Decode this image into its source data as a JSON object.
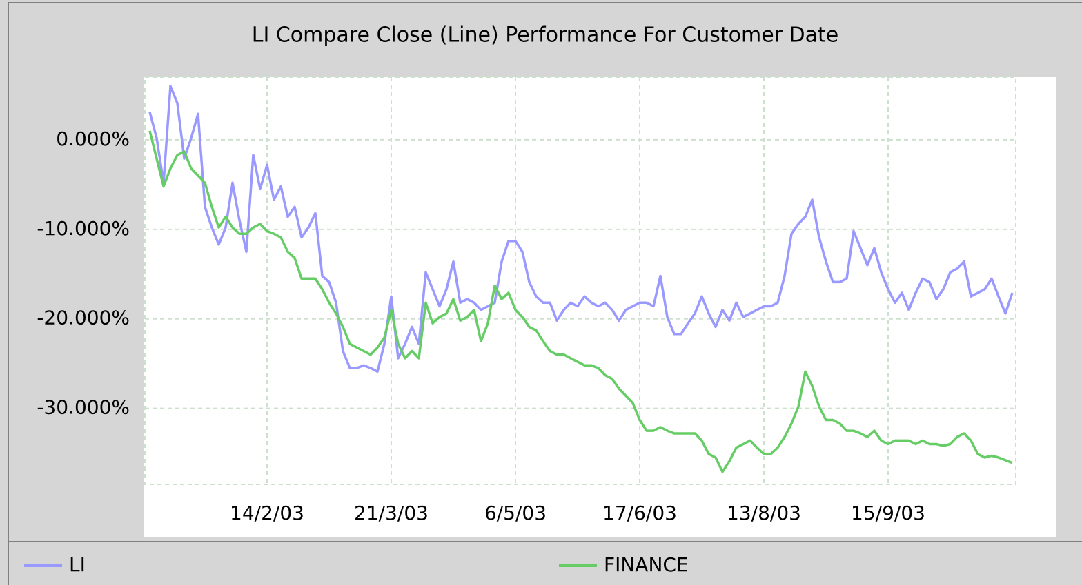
{
  "chart_data": {
    "type": "line",
    "title": "LI Compare Close (Line) Performance For Customer Date",
    "categories": [
      null,
      null,
      null,
      null,
      null,
      null,
      null,
      null,
      null,
      null,
      null,
      null,
      null,
      null,
      null,
      null,
      null,
      "14/2/03",
      null,
      null,
      null,
      null,
      null,
      null,
      null,
      null,
      null,
      null,
      null,
      null,
      null,
      null,
      null,
      null,
      null,
      "21/3/03",
      null,
      null,
      null,
      null,
      null,
      null,
      null,
      null,
      null,
      null,
      null,
      null,
      null,
      null,
      null,
      null,
      null,
      "6/5/03",
      null,
      null,
      null,
      null,
      null,
      null,
      null,
      null,
      null,
      null,
      null,
      null,
      null,
      null,
      null,
      null,
      null,
      "17/6/03",
      null,
      null,
      null,
      null,
      null,
      null,
      null,
      null,
      null,
      null,
      null,
      null,
      null,
      null,
      null,
      null,
      null,
      "13/8/03",
      null,
      null,
      null,
      null,
      null,
      null,
      null,
      null,
      null,
      null,
      null,
      null,
      null,
      null,
      null,
      null,
      null,
      "15/9/03",
      null,
      null,
      null,
      null,
      null,
      null,
      null,
      null,
      null,
      null,
      null,
      null,
      null,
      null,
      null,
      null,
      null,
      null
    ],
    "series": [
      {
        "name": "LI",
        "color": "#9999ff",
        "values": [
          3.1,
          0.2,
          -4.8,
          6.0,
          4.1,
          -2.1,
          0.2,
          2.9,
          -7.5,
          -9.8,
          -11.7,
          -9.8,
          -4.8,
          -9.0,
          -12.5,
          -1.7,
          -5.5,
          -2.8,
          -6.7,
          -5.2,
          -8.6,
          -7.5,
          -10.9,
          -9.8,
          -8.2,
          -15.2,
          -15.9,
          -18.2,
          -23.6,
          -25.5,
          -25.5,
          -25.2,
          -25.5,
          -25.9,
          -22.8,
          -17.5,
          -24.4,
          -22.8,
          -20.9,
          -22.8,
          -14.8,
          -16.7,
          -18.6,
          -16.7,
          -13.6,
          -18.2,
          -17.8,
          -18.2,
          -19.0,
          -18.6,
          -18.2,
          -13.6,
          -11.3,
          -11.3,
          -12.5,
          -15.9,
          -17.5,
          -18.2,
          -18.2,
          -20.2,
          -19.0,
          -18.2,
          -18.6,
          -17.5,
          -18.2,
          -18.6,
          -18.2,
          -19.0,
          -20.2,
          -19.0,
          -18.6,
          -18.2,
          -18.2,
          -18.6,
          -15.2,
          -19.8,
          -21.7,
          -21.7,
          -20.5,
          -19.4,
          -17.5,
          -19.4,
          -20.9,
          -19.0,
          -20.2,
          -18.2,
          -19.8,
          -19.4,
          -19.0,
          -18.6,
          -18.6,
          -18.2,
          -15.2,
          -10.5,
          -9.4,
          -8.6,
          -6.7,
          -10.9,
          -13.6,
          -15.9,
          -15.9,
          -15.5,
          -10.2,
          -12.1,
          -14.0,
          -12.1,
          -14.8,
          -16.7,
          -18.2,
          -17.1,
          -19.0,
          -17.1,
          -15.5,
          -15.9,
          -17.8,
          -16.7,
          -14.8,
          -14.4,
          -13.6,
          -17.5,
          -17.1,
          -16.7,
          -15.5,
          -17.5,
          -19.4,
          -17.1
        ]
      },
      {
        "name": "FINANCE",
        "color": "#66cc66",
        "values": [
          1.0,
          -2.1,
          -5.2,
          -3.2,
          -1.7,
          -1.3,
          -3.2,
          -4.0,
          -4.8,
          -7.5,
          -9.8,
          -8.6,
          -9.8,
          -10.5,
          -10.5,
          -9.8,
          -9.4,
          -10.2,
          -10.5,
          -10.9,
          -12.5,
          -13.2,
          -15.5,
          -15.5,
          -15.5,
          -16.7,
          -18.2,
          -19.4,
          -20.9,
          -22.8,
          -23.2,
          -23.6,
          -24.0,
          -23.2,
          -22.1,
          -19.0,
          -22.8,
          -24.4,
          -23.6,
          -24.4,
          -18.2,
          -20.5,
          -19.8,
          -19.4,
          -17.8,
          -20.2,
          -19.8,
          -19.0,
          -22.5,
          -20.5,
          -16.3,
          -17.8,
          -17.1,
          -19.0,
          -19.8,
          -20.9,
          -21.3,
          -22.5,
          -23.6,
          -24.0,
          -24.0,
          -24.4,
          -24.8,
          -25.2,
          -25.2,
          -25.5,
          -26.3,
          -26.7,
          -27.8,
          -28.6,
          -29.4,
          -31.3,
          -32.5,
          -32.5,
          -32.1,
          -32.5,
          -32.8,
          -32.8,
          -32.8,
          -32.8,
          -33.6,
          -35.1,
          -35.5,
          -37.1,
          -35.9,
          -34.4,
          -34.0,
          -33.6,
          -34.4,
          -35.1,
          -35.1,
          -34.4,
          -33.2,
          -31.7,
          -29.8,
          -25.9,
          -27.5,
          -29.8,
          -31.3,
          -31.3,
          -31.7,
          -32.5,
          -32.5,
          -32.8,
          -33.2,
          -32.5,
          -33.6,
          -34.0,
          -33.6,
          -33.6,
          -33.6,
          -34.0,
          -33.6,
          -34.0,
          -34.0,
          -34.2,
          -34.0,
          -33.2,
          -32.8,
          -33.6,
          -35.1,
          -35.5,
          -35.3,
          -35.5,
          -35.8,
          -36.1
        ]
      }
    ],
    "ylim": [
      -38.5,
      7
    ],
    "yticks": [
      {
        "value": 0,
        "label": "0.000%"
      },
      {
        "value": -10,
        "label": "-10.000%"
      },
      {
        "value": -20,
        "label": "-20.000%"
      },
      {
        "value": -30,
        "label": "-30.000%"
      }
    ],
    "grid": true
  }
}
